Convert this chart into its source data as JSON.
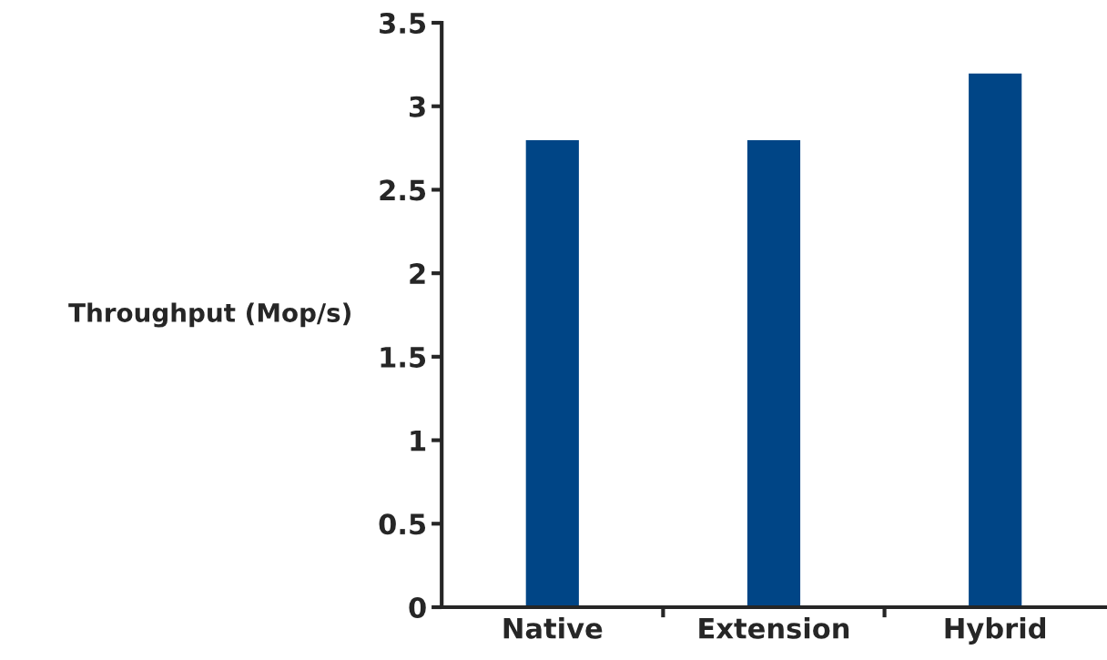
{
  "chart_data": {
    "type": "bar",
    "ylabel": "Throughput (Mop/s)",
    "categories": [
      "Native",
      "Extension",
      "Hybrid"
    ],
    "values": [
      2.8,
      2.8,
      3.2
    ],
    "color": "#004586",
    "ylim": [
      0,
      3.5
    ],
    "yticks": [
      0,
      0.5,
      1,
      1.5,
      2,
      2.5,
      3,
      3.5
    ],
    "grid": false,
    "legend": false
  }
}
